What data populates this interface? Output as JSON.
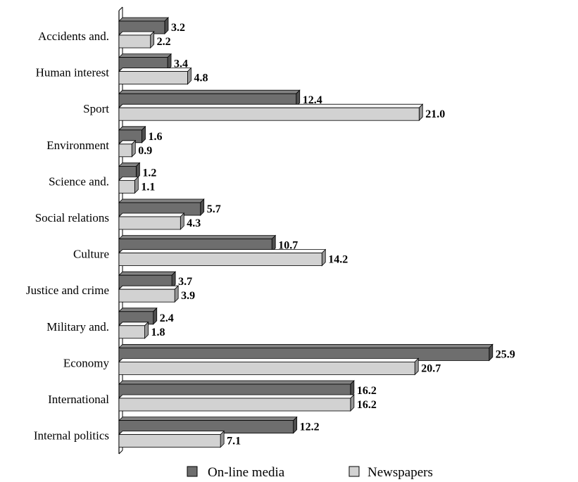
{
  "chart_data": {
    "type": "bar",
    "orientation": "horizontal",
    "style": "3d",
    "title": "",
    "xlabel": "",
    "ylabel": "",
    "xlim": [
      0,
      25.9
    ],
    "grid": false,
    "legend_position": "bottom",
    "categories": [
      "Accidents and.",
      "Human interest",
      "Sport",
      "Environment",
      "Science and.",
      "Social relations",
      "Culture",
      "Justice and crime",
      "Military and.",
      "Economy",
      "International",
      "Internal politics"
    ],
    "series": [
      {
        "name": "On-line media",
        "color": "#6e6e6e",
        "values": [
          3.2,
          3.4,
          12.4,
          1.6,
          1.2,
          5.7,
          10.7,
          3.7,
          2.4,
          25.9,
          16.2,
          12.2
        ],
        "labels": [
          "3.2",
          "3.4",
          "12.4",
          "1.6",
          "1.2",
          "5.7",
          "10.7",
          "3.7",
          "2.4",
          "25.9",
          "16.2",
          "12.2"
        ]
      },
      {
        "name": "Newspapers",
        "color": "#d2d2d2",
        "values": [
          2.2,
          4.8,
          21.0,
          0.9,
          1.1,
          4.3,
          14.2,
          3.9,
          1.8,
          20.7,
          16.2,
          7.1
        ],
        "labels": [
          "2.2",
          "4.8",
          "21.0",
          "0.9",
          "1.1",
          "4.3",
          "14.2",
          "3.9",
          "1.8",
          "20.7",
          "16.2",
          "7.1"
        ]
      }
    ]
  }
}
